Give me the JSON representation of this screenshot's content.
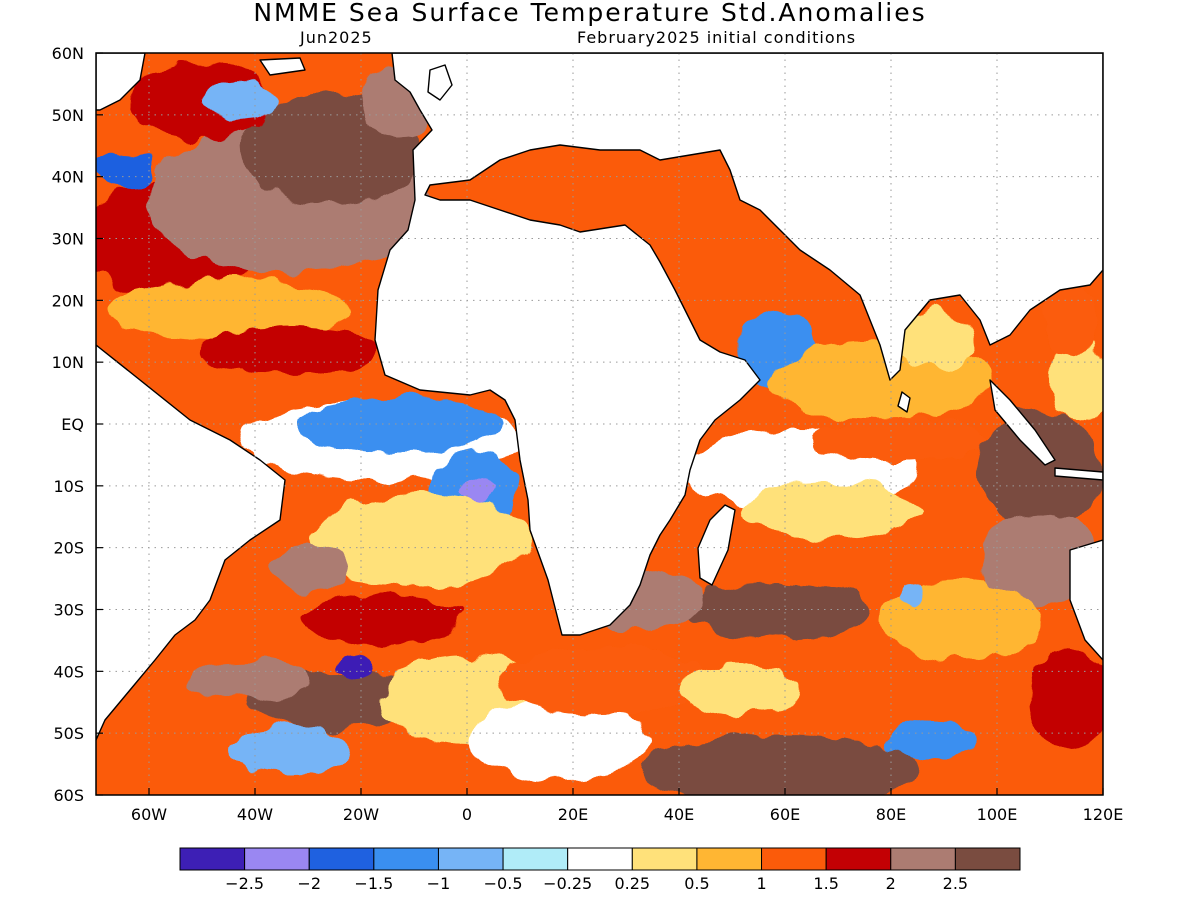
{
  "header": {
    "title": "NMME Sea Surface Temperature Std.Anomalies",
    "valid_month": "Jun2025",
    "initial_conditions": "February2025 initial conditions"
  },
  "map": {
    "projection": "lat-lon",
    "lon_range": [
      -70,
      120
    ],
    "lat_range": [
      -60,
      60
    ],
    "grid": "dotted",
    "x_ticks": [
      "60W",
      "40W",
      "20W",
      "0",
      "20E",
      "40E",
      "60E",
      "80E",
      "100E",
      "120E"
    ],
    "x_tick_values": [
      -60,
      -40,
      -20,
      0,
      20,
      40,
      60,
      80,
      100,
      120
    ],
    "y_ticks": [
      "60N",
      "50N",
      "40N",
      "30N",
      "20N",
      "10N",
      "EQ",
      "10S",
      "20S",
      "30S",
      "40S",
      "50S",
      "60S"
    ],
    "y_tick_values": [
      60,
      50,
      40,
      30,
      20,
      10,
      0,
      -10,
      -20,
      -30,
      -40,
      -50,
      -60
    ],
    "land_color": "#ffffff",
    "coast_color": "#000000"
  },
  "colorbar": {
    "colors": [
      "#3d1fb5",
      "#9a87f2",
      "#1f61e0",
      "#3a8ff0",
      "#76b4f6",
      "#b0ecf8",
      "#ffffff",
      "#ffe17a",
      "#ffb633",
      "#fb5b0a",
      "#c30004",
      "#ac7c72",
      "#7a4c40"
    ],
    "labels": [
      "−2.5",
      "−2",
      "−1.5",
      "−1",
      "−0.5",
      "−0.25",
      "0.25",
      "0.5",
      "1",
      "1.5",
      "2",
      "2.5"
    ]
  }
}
